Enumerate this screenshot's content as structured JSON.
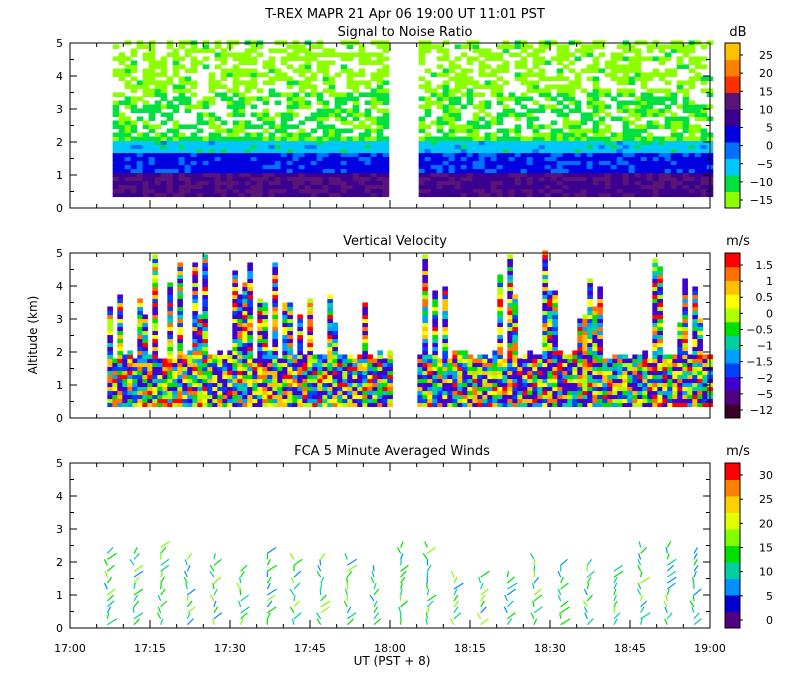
{
  "header": {
    "title": "T-REX  MAPR 21 Apr 06  19:00 UT  11:01  PST"
  },
  "axes": {
    "ylabel": "Altitude (km)",
    "xlabel": "UT  (PST + 8)",
    "xticks": [
      "17:00",
      "17:15",
      "17:30",
      "17:45",
      "18:00",
      "18:15",
      "18:30",
      "18:45",
      "19:00"
    ],
    "yticks": [
      "0",
      "1",
      "2",
      "3",
      "4",
      "5"
    ]
  },
  "colors": {
    "snr": [
      "#8cff00",
      "#00e040",
      "#00c8ff",
      "#0070ff",
      "#0000e0",
      "#3c0090",
      "#5a1478",
      "#ff3000",
      "#ff8000",
      "#ffc000"
    ],
    "vel": [
      "#3a0028",
      "#500080",
      "#4000d0",
      "#0040ff",
      "#00a0ff",
      "#00d0a0",
      "#00e000",
      "#b0ff00",
      "#ffff00",
      "#ffc000",
      "#ff7000",
      "#ff0000"
    ],
    "wind": [
      "#500080",
      "#0000d0",
      "#0090ff",
      "#00d0a0",
      "#00e000",
      "#80ff00",
      "#e0ff00",
      "#ffd000",
      "#ff8000",
      "#ff0000"
    ]
  },
  "chart_data": [
    {
      "type": "heatmap",
      "title": "Signal to Noise Ratio",
      "units": "dB",
      "x_range": [
        "17:00",
        "19:00"
      ],
      "ylim": [
        0,
        5
      ],
      "colorbar_labels": [
        "25",
        "20",
        "15",
        "10",
        "5",
        "0",
        "−5",
        "−10",
        "−15"
      ],
      "data_gap": [
        "18:00",
        "18:05"
      ],
      "profile": [
        {
          "altitude_km_max": 1.0,
          "snr_db": 12
        },
        {
          "altitude_km_max": 1.6,
          "snr_db": 4
        },
        {
          "altitude_km_max": 2.0,
          "snr_db": -5
        },
        {
          "altitude_km_max": 3.5,
          "snr_db": -12
        },
        {
          "altitude_km_max": 5.0,
          "snr_db": -15
        }
      ]
    },
    {
      "type": "heatmap",
      "title": "Vertical Velocity",
      "units": "m/s",
      "x_range": [
        "17:00",
        "19:00"
      ],
      "ylim": [
        0,
        5
      ],
      "colorbar_labels": [
        "1.5",
        "1",
        "0.5",
        "0",
        "−0.5",
        "−1",
        "−1.5",
        "−2",
        "−5",
        "−12"
      ],
      "data_gap": [
        "18:00",
        "18:05"
      ],
      "value_range_mps": [
        -2,
        1.5
      ]
    },
    {
      "type": "scatter",
      "title": "FCA 5 Minute Averaged Winds",
      "units": "m/s",
      "x_range": [
        "17:00",
        "19:00"
      ],
      "ylim": [
        0,
        5
      ],
      "colorbar_labels": [
        "30",
        "25",
        "20",
        "15",
        "10",
        "5",
        "0"
      ],
      "speed_range_mps": [
        0,
        30
      ],
      "profile_times": [
        "17:07",
        "17:12",
        "17:17",
        "17:22",
        "17:27",
        "17:32",
        "17:37",
        "17:42",
        "17:47",
        "17:52",
        "17:57",
        "18:02",
        "18:07",
        "18:12",
        "18:17",
        "18:22",
        "18:27",
        "18:32",
        "18:37",
        "18:42",
        "18:47",
        "18:52",
        "18:57"
      ]
    }
  ]
}
